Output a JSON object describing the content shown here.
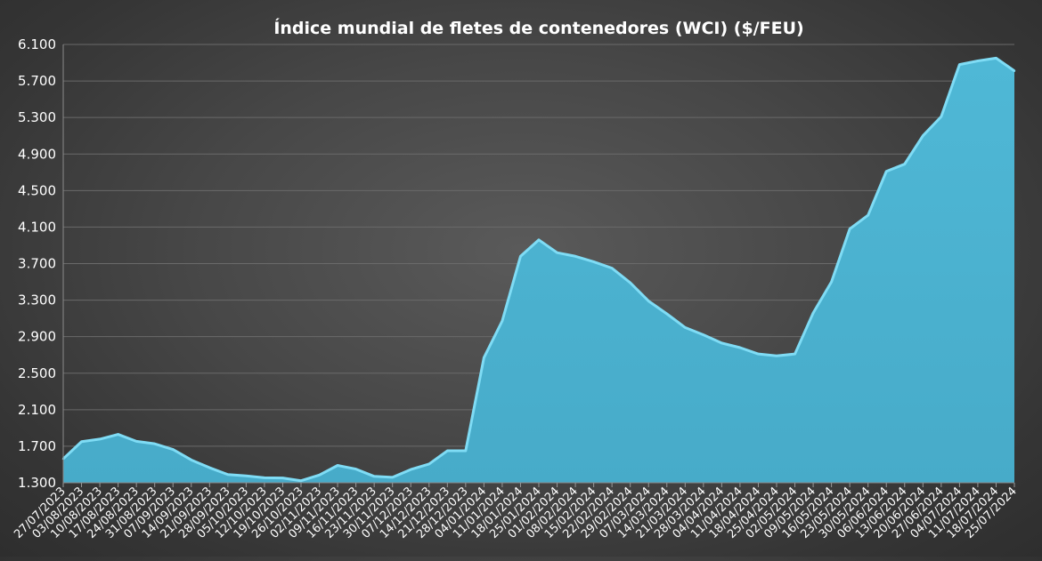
{
  "chart_data": {
    "type": "area",
    "title": "Índice mundial de fletes de contenedores (WCI) ($/FEU)",
    "xlabel": "",
    "ylabel": "",
    "ylim": [
      1300,
      6100
    ],
    "yticks": [
      "1.300",
      "1.700",
      "2.100",
      "2.500",
      "2.900",
      "3.300",
      "3.700",
      "4.100",
      "4.500",
      "4.900",
      "5.300",
      "5.700",
      "6.100"
    ],
    "ytick_values": [
      1300,
      1700,
      2100,
      2500,
      2900,
      3300,
      3700,
      4100,
      4500,
      4900,
      5300,
      5700,
      6100
    ],
    "grid": true,
    "legend": "none",
    "colors": {
      "fill": "#4fb8d6",
      "line": "#7fdcf5"
    },
    "x": [
      "27/07/2023",
      "03/08/2023",
      "10/08/2023",
      "17/08/2023",
      "24/08/2023",
      "31/08/2023",
      "07/09/2023",
      "14/09/2023",
      "21/09/2023",
      "28/09/2023",
      "05/10/2023",
      "12/10/2023",
      "19/10/2023",
      "26/10/2023",
      "02/11/2023",
      "09/11/2023",
      "16/11/2023",
      "23/11/2023",
      "30/11/2023",
      "07/12/2023",
      "14/12/2023",
      "21/12/2023",
      "28/12/2023",
      "04/01/2024",
      "11/01/2024",
      "18/01/2024",
      "25/01/2024",
      "01/02/2024",
      "08/02/2024",
      "15/02/2024",
      "22/02/2024",
      "29/02/2024",
      "07/03/2024",
      "14/03/2024",
      "21/03/2024",
      "28/03/2024",
      "04/04/2024",
      "11/04/2024",
      "18/04/2024",
      "25/04/2024",
      "02/05/2024",
      "09/05/2024",
      "16/05/2024",
      "23/05/2024",
      "30/05/2024",
      "06/06/2024",
      "13/06/2024",
      "20/06/2024",
      "27/06/2024",
      "04/07/2024",
      "11/07/2024",
      "18/07/2024",
      "25/07/2024"
    ],
    "series": [
      {
        "values": [
          1562,
          1750,
          1778,
          1830,
          1754,
          1727,
          1665,
          1550,
          1465,
          1390,
          1375,
          1355,
          1352,
          1322,
          1385,
          1490,
          1450,
          1370,
          1360,
          1445,
          1505,
          1650,
          1650,
          2670,
          3072,
          3780,
          3960,
          3820,
          3780,
          3720,
          3650,
          3490,
          3290,
          3150,
          3000,
          2920,
          2830,
          2780,
          2710,
          2690,
          2710,
          3160,
          3500,
          4080,
          4230,
          4710,
          4790,
          5100,
          5310,
          5880,
          5920,
          5950,
          5810
        ]
      }
    ]
  }
}
